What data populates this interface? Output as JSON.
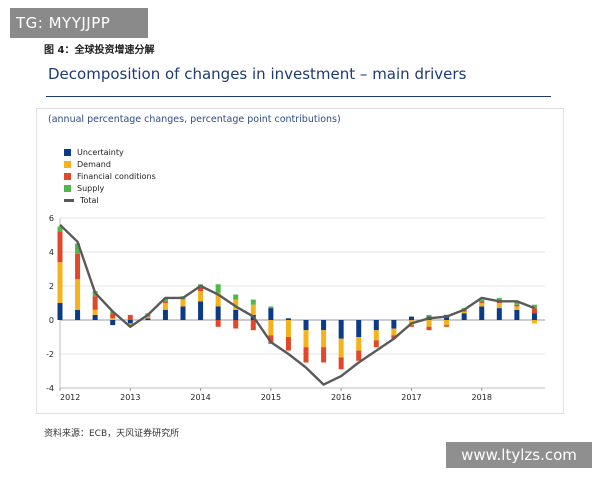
{
  "overlay_tag": "TG: MYYJJPP",
  "figure_label": "图 4：全球投资增速分解",
  "source": "资料来源：ECB，天风证券研究所",
  "watermark": "www.ltylzs.com",
  "chart_data": {
    "type": "bar",
    "title": "Decomposition of changes in investment – main drivers",
    "subtitle": "(annual percentage changes, percentage point contributions)",
    "xlabel": "",
    "ylabel": "",
    "ylim": [
      -4,
      6
    ],
    "yticks": [
      -4,
      -2,
      0,
      2,
      4,
      6
    ],
    "xticks": [
      "2012",
      "2013",
      "2014",
      "2015",
      "2016",
      "2017",
      "2018"
    ],
    "x_start": 2012,
    "x_end": 2018.9,
    "stacked": true,
    "legend_position": "top-left",
    "x": [
      2012.0,
      2012.25,
      2012.5,
      2012.75,
      2013.0,
      2013.25,
      2013.5,
      2013.75,
      2014.0,
      2014.25,
      2014.5,
      2014.75,
      2015.0,
      2015.25,
      2015.5,
      2015.75,
      2016.0,
      2016.25,
      2016.5,
      2016.75,
      2017.0,
      2017.25,
      2017.5,
      2017.75,
      2018.0,
      2018.25,
      2018.5,
      2018.75
    ],
    "series": [
      {
        "name": "Uncertainty",
        "color": "#0b3a86",
        "values": [
          1.0,
          0.6,
          0.3,
          -0.3,
          -0.2,
          0.1,
          0.6,
          0.8,
          1.1,
          0.8,
          0.6,
          0.3,
          0.7,
          0.1,
          -0.6,
          -0.6,
          -1.1,
          -1.0,
          -0.6,
          -0.5,
          0.2,
          0.2,
          0.3,
          0.4,
          0.8,
          0.7,
          0.6,
          0.4
        ]
      },
      {
        "name": "Demand",
        "color": "#f5b21a",
        "values": [
          2.4,
          1.8,
          0.3,
          0.1,
          -0.2,
          0.1,
          0.4,
          0.4,
          0.6,
          0.8,
          0.6,
          0.6,
          -0.9,
          -1.0,
          -1.0,
          -1.0,
          -1.1,
          -0.8,
          -0.6,
          -0.4,
          -0.3,
          -0.4,
          -0.3,
          0.1,
          0.2,
          0.3,
          0.2,
          -0.2
        ]
      },
      {
        "name": "Financial conditions",
        "color": "#e2472a",
        "values": [
          1.8,
          1.5,
          0.8,
          0.3,
          0.3,
          0.1,
          0.1,
          0.0,
          0.2,
          -0.4,
          -0.5,
          -0.6,
          -0.5,
          -0.8,
          -0.9,
          -0.9,
          -0.7,
          -0.6,
          -0.4,
          -0.2,
          -0.1,
          -0.2,
          -0.1,
          0.1,
          0.1,
          0.2,
          0.1,
          0.3
        ]
      },
      {
        "name": "Supply",
        "color": "#50b848",
        "values": [
          0.3,
          0.6,
          0.3,
          0.1,
          0.0,
          0.1,
          0.2,
          0.2,
          0.2,
          0.5,
          0.3,
          0.3,
          0.1,
          0.0,
          0.0,
          0.0,
          0.0,
          0.0,
          0.0,
          0.0,
          0.0,
          0.1,
          0.0,
          0.1,
          0.1,
          0.1,
          0.2,
          0.2
        ]
      }
    ],
    "total": {
      "name": "Total",
      "color": "#5a5a5a",
      "values": [
        5.6,
        4.6,
        1.6,
        0.5,
        -0.4,
        0.3,
        1.3,
        1.3,
        2.0,
        1.5,
        0.8,
        0.2,
        -1.3,
        -2.0,
        -2.8,
        -3.8,
        -3.3,
        -2.5,
        -1.8,
        -1.1,
        -0.2,
        0.1,
        0.2,
        0.6,
        1.3,
        1.1,
        1.1,
        0.7
      ]
    }
  }
}
